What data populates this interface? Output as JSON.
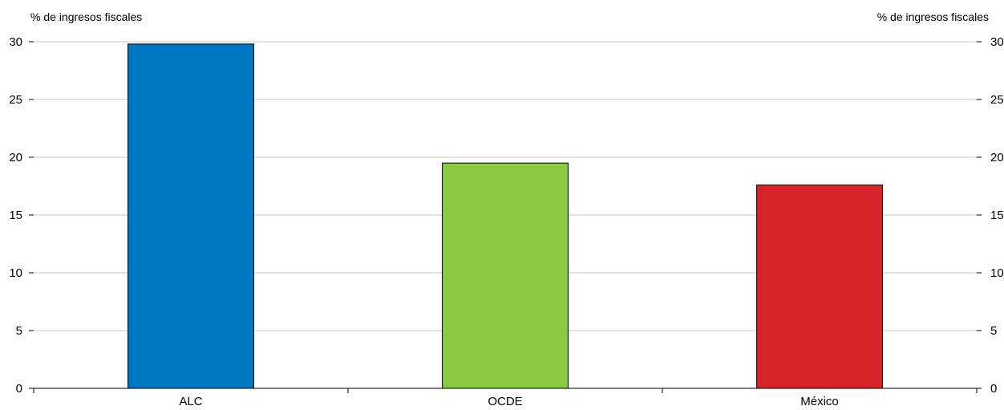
{
  "chart_data": {
    "type": "bar",
    "title": "",
    "xlabel": "",
    "ylabel_left": "% de ingresos fiscales",
    "ylabel_right": "% de ingresos fiscales",
    "categories": [
      "ALC",
      "OCDE",
      "México"
    ],
    "values": [
      29.8,
      19.5,
      17.6
    ],
    "colors": [
      "#0077C0",
      "#8CC841",
      "#D9232A"
    ],
    "ylim": [
      0,
      30
    ],
    "yticks": [
      0,
      5,
      10,
      15,
      20,
      25,
      30
    ],
    "grid": true,
    "legend": "none"
  }
}
